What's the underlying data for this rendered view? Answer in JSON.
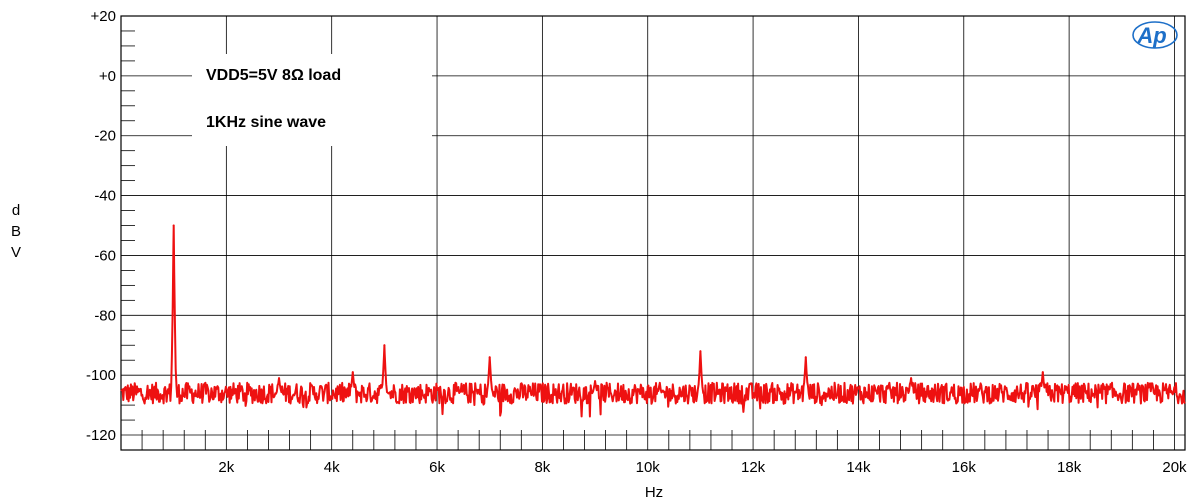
{
  "chart_data": {
    "type": "line",
    "xlabel": "Hz",
    "ylabel": "dBV",
    "ylabel_letters": [
      "d",
      "B",
      "V"
    ],
    "xlim": [
      0,
      20200
    ],
    "ylim": [
      -125,
      20
    ],
    "x_ticks": [
      2000,
      4000,
      6000,
      8000,
      10000,
      12000,
      14000,
      16000,
      18000,
      20000
    ],
    "x_tick_labels": [
      "2k",
      "4k",
      "6k",
      "8k",
      "10k",
      "12k",
      "14k",
      "16k",
      "18k",
      "20k"
    ],
    "y_ticks": [
      20,
      0,
      -20,
      -40,
      -60,
      -80,
      -100,
      -120
    ],
    "y_tick_labels": [
      "+20",
      "+0",
      "-20",
      "-40",
      "-60",
      "-80",
      "-100",
      "-120"
    ],
    "grid": true,
    "annotations": [
      "VDD5=5V 8Ω  load",
      "1KHz sine wave"
    ],
    "logo": "Ap",
    "series": [
      {
        "color": "#ee1111",
        "noise_floor": -106,
        "x_start": 0,
        "x_end": 20200,
        "peaks": [
          {
            "x": 1000,
            "y": -50
          },
          {
            "x": 3000,
            "y": -101
          },
          {
            "x": 4400,
            "y": -99
          },
          {
            "x": 5000,
            "y": -90
          },
          {
            "x": 7000,
            "y": -94
          },
          {
            "x": 9000,
            "y": -102
          },
          {
            "x": 11000,
            "y": -92
          },
          {
            "x": 13000,
            "y": -94
          },
          {
            "x": 15000,
            "y": -101
          },
          {
            "x": 17500,
            "y": -99
          }
        ]
      }
    ]
  }
}
